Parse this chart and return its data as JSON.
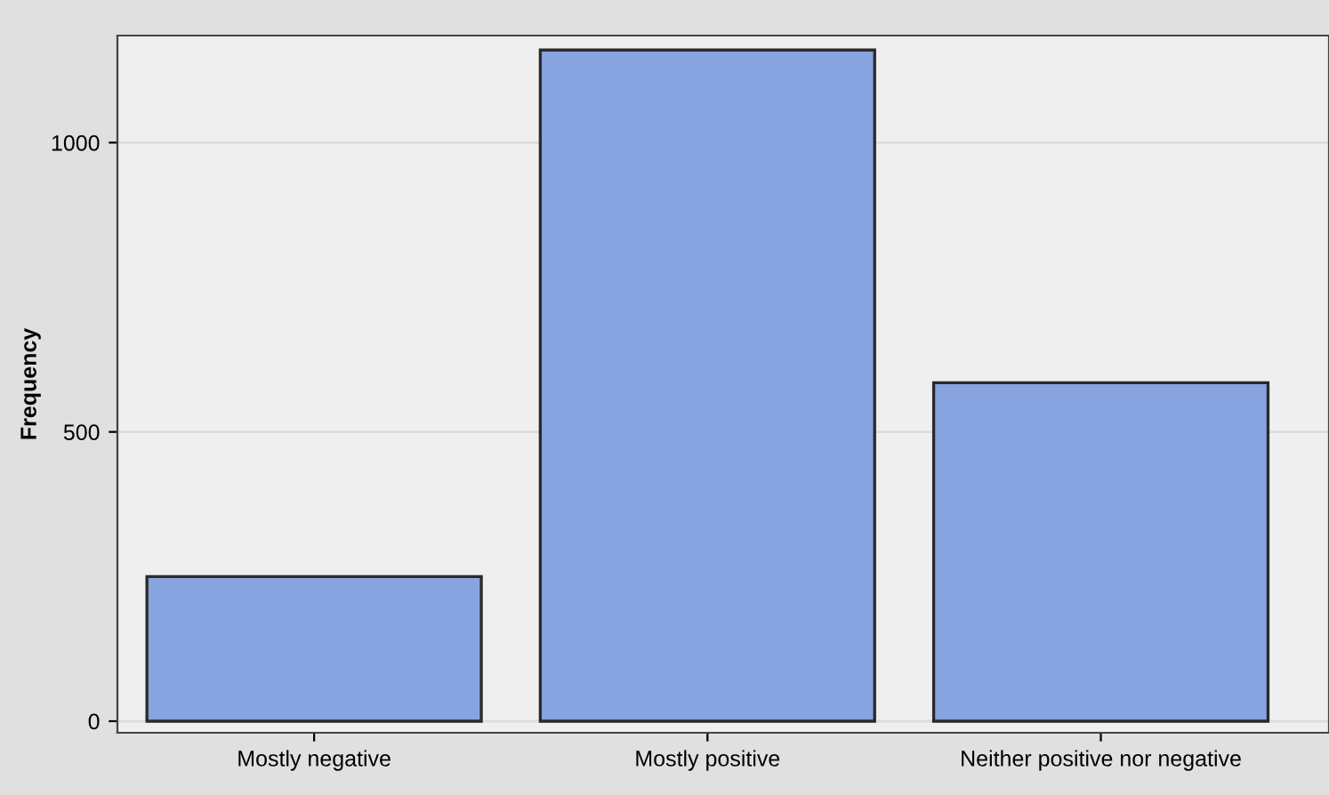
{
  "chart_data": {
    "type": "bar",
    "ylabel": "Frequency",
    "categories": [
      "Mostly negative",
      "Mostly positive",
      "Neither positive nor negative"
    ],
    "values": [
      250,
      1160,
      585
    ],
    "color": "#87a3e0",
    "ylim": [
      -20,
      1185
    ],
    "yticks": [
      0,
      500,
      1000
    ],
    "grid": "y",
    "legend": false
  }
}
